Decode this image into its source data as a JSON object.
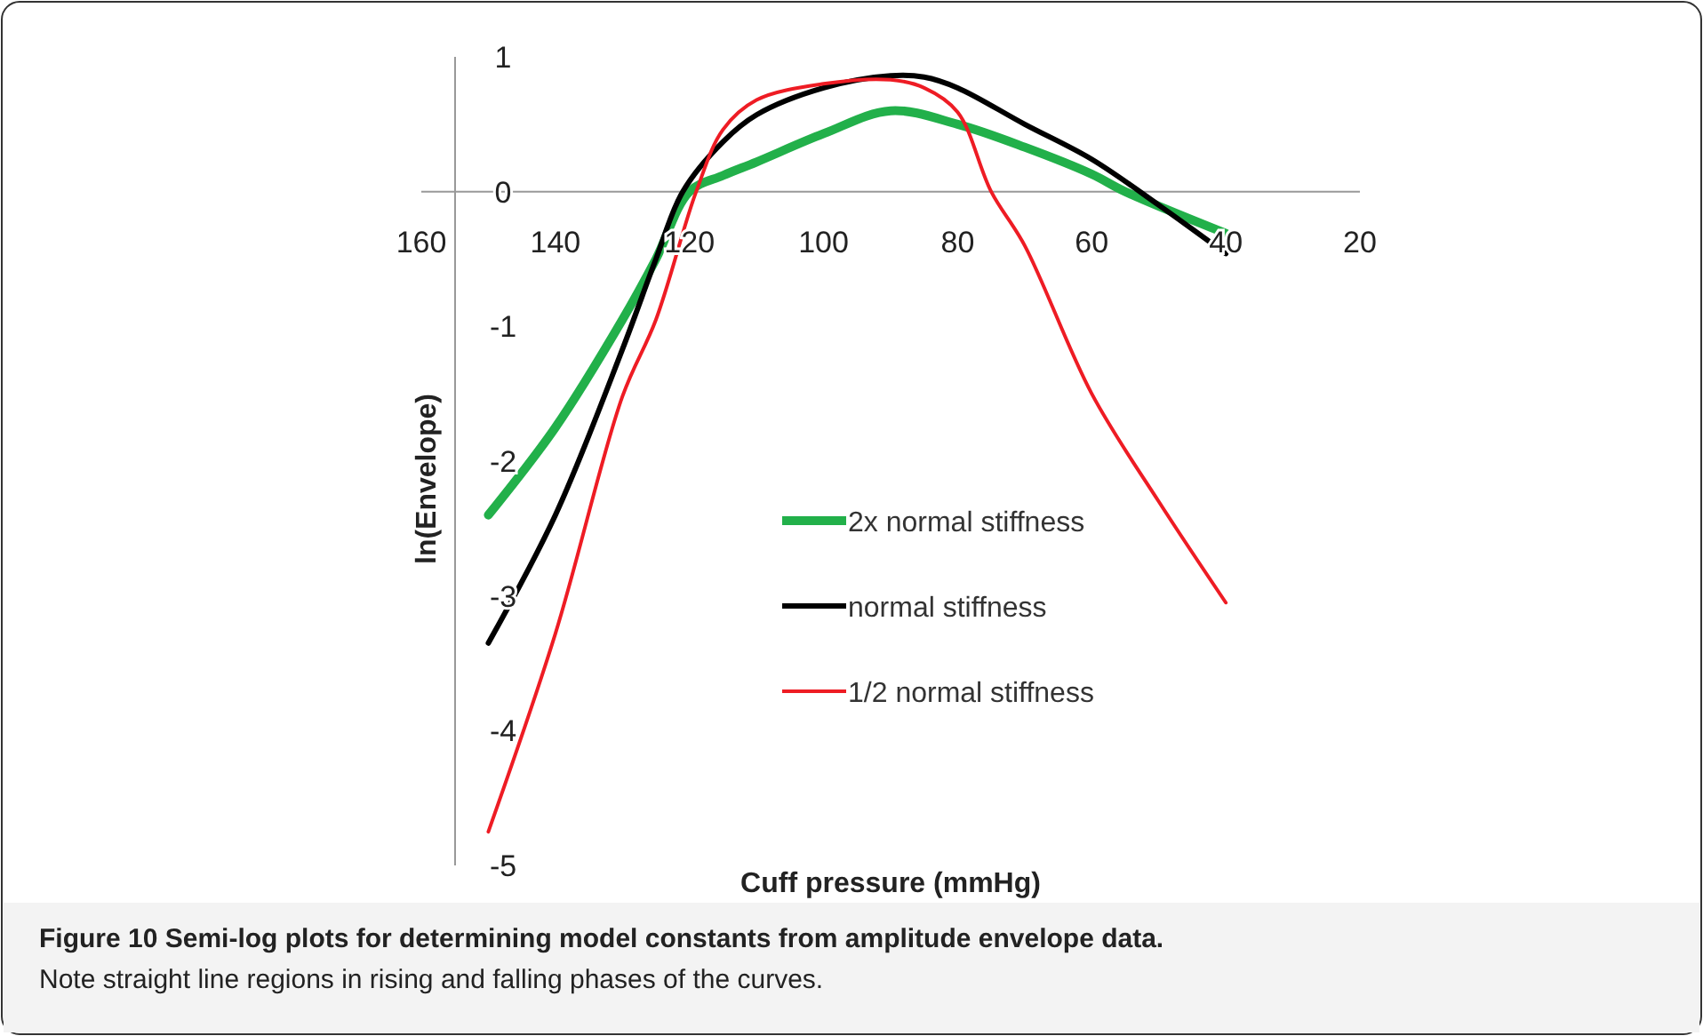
{
  "chart_data": {
    "type": "line",
    "title": "Figure 10 Semi-log plots for determining model constants from amplitude envelope data.",
    "annotations": [
      "Note straight line regions in rising and falling phases of the curves."
    ],
    "xlabel": "Cuff pressure (mmHg)",
    "ylabel": "ln(Envelope)",
    "xlim": [
      160,
      20
    ],
    "xticks": [
      160,
      140,
      120,
      100,
      80,
      60,
      40,
      20
    ],
    "ylim": [
      -5,
      1
    ],
    "yticks": [
      1,
      0,
      -1,
      -2,
      -3,
      -4,
      -5
    ],
    "grid": false,
    "legend": "center",
    "marker": "none",
    "line_style": "solid",
    "series": [
      {
        "name": "2x normal stiffness",
        "color": "#22b04a",
        "x": [
          150,
          140,
          130,
          125,
          120,
          115,
          110,
          100,
          90,
          80,
          70,
          60,
          55,
          40
        ],
        "values": [
          -2.4,
          -1.75,
          -0.95,
          -0.5,
          0,
          0.12,
          0.22,
          0.43,
          0.6,
          0.5,
          0.33,
          0.13,
          0,
          -0.31
        ]
      },
      {
        "name": "normal stiffness",
        "color": "#000000",
        "x": [
          150,
          140,
          130,
          125,
          121,
          115,
          110,
          100,
          90,
          85,
          80,
          70,
          60,
          50,
          40
        ],
        "values": [
          -3.35,
          -2.4,
          -1.17,
          -0.5,
          0,
          0.37,
          0.57,
          0.77,
          0.86,
          0.85,
          0.77,
          0.5,
          0.24,
          -0.1,
          -0.46
        ]
      },
      {
        "name": "1/2 normal stiffness",
        "color": "#ee1c24",
        "x": [
          150,
          140,
          130,
          125,
          119,
          115,
          110,
          100,
          90,
          85,
          80,
          75,
          70,
          60,
          50,
          40
        ],
        "values": [
          -4.75,
          -3.28,
          -1.52,
          -0.95,
          0,
          0.46,
          0.68,
          0.8,
          0.83,
          0.77,
          0.59,
          0,
          -0.4,
          -1.5,
          -2.3,
          -3.05
        ]
      }
    ]
  }
}
